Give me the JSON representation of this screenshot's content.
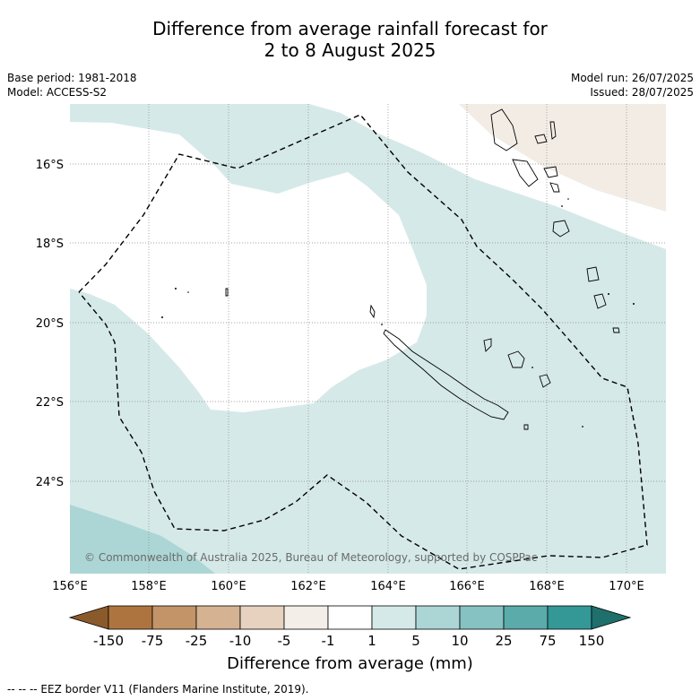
{
  "title_line1": "Difference from average rainfall forecast for",
  "title_line2": "2 to 8 August 2025",
  "base_period": "Base period: 1981-2018",
  "model": "Model: ACCESS-S2",
  "model_run": "Model run: 26/07/2025",
  "issued": "Issued: 28/07/2025",
  "lat_labels": [
    "16°S",
    "18°S",
    "20°S",
    "22°S",
    "24°S"
  ],
  "lon_labels": [
    "156°E",
    "158°E",
    "160°E",
    "162°E",
    "164°E",
    "166°E",
    "168°E",
    "170°E"
  ],
  "copyright": "© Commonwealth of Australia 2025, Bureau of Meteorology, supported by COSPPac",
  "colorbar": {
    "ticks": [
      "-150",
      "-75",
      "-25",
      "-10",
      "-5",
      "-1",
      "1",
      "5",
      "10",
      "25",
      "75",
      "150"
    ],
    "colors": [
      "#8b5a2b",
      "#ae7440",
      "#c29468",
      "#d5b292",
      "#e7d2bf",
      "#f3eee8",
      "#ffffff",
      "#d5e9e8",
      "#acd6d5",
      "#86c2c1",
      "#5aabaa",
      "#339896",
      "#1f6f6c"
    ],
    "title": "Difference from average (mm)"
  },
  "footnote": "--  --  -- EEZ border V11 (Flanders Marine Institute, 2019)."
}
